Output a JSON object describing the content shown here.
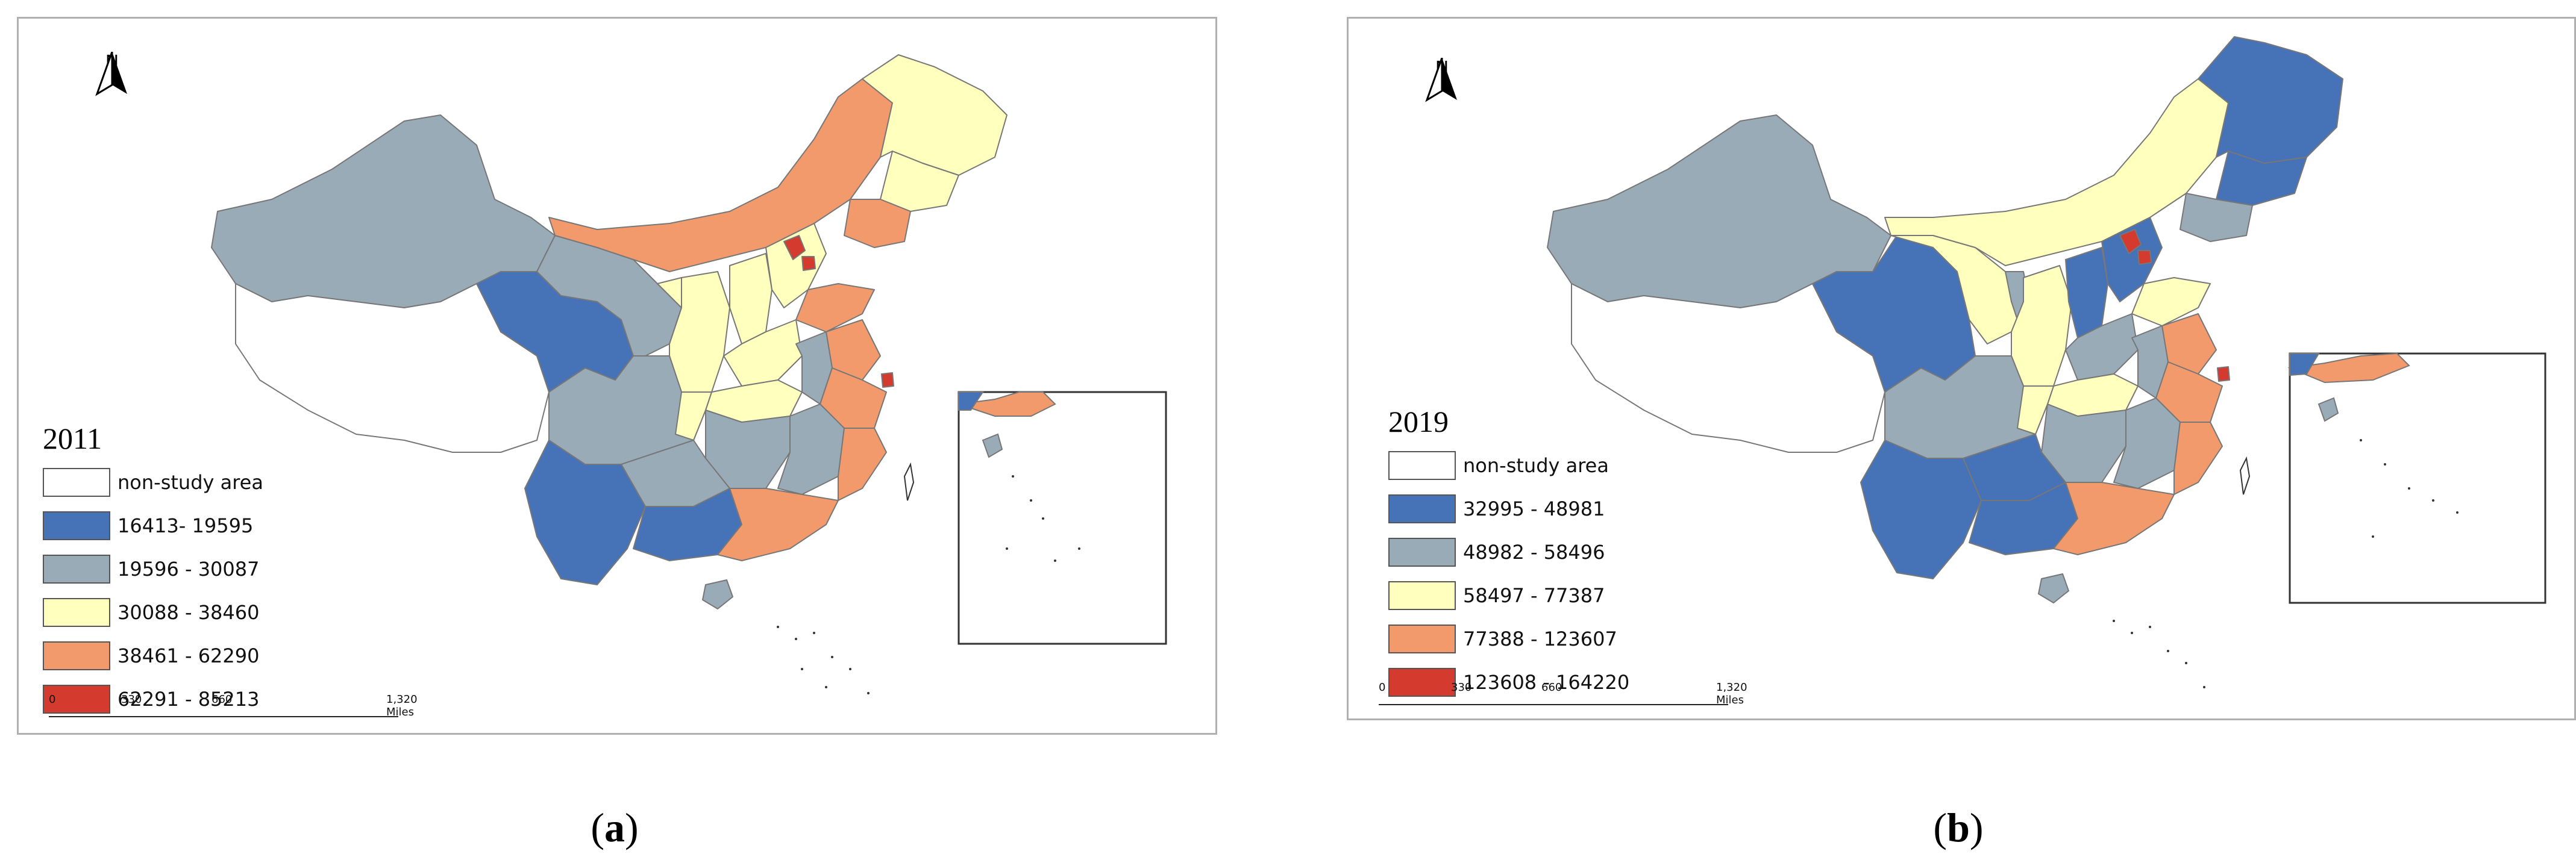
{
  "figure": {
    "caption_a": "a",
    "caption_b": "b"
  },
  "north_label": "N",
  "colors": {
    "class1": "#4673b8",
    "class2": "#9aabb8",
    "class3": "#ffffbe",
    "class4": "#f29a6b",
    "class5": "#d43a2e",
    "non_study": "#ffffff"
  },
  "panel_a": {
    "year": "2011",
    "legend": [
      {
        "label": "non-study area",
        "color": "#ffffff"
      },
      {
        "label": "16413- 19595",
        "color": "#4673b8"
      },
      {
        "label": "19596 - 30087",
        "color": "#9aabb8"
      },
      {
        "label": "30088 - 38460",
        "color": "#ffffbe"
      },
      {
        "label": "38461 - 62290",
        "color": "#f29a6b"
      },
      {
        "label": "62291 - 85213",
        "color": "#d43a2e"
      }
    ],
    "scale": {
      "t0": "0",
      "t1": "330",
      "t2": "660",
      "t3": "1,320 Miles"
    }
  },
  "panel_b": {
    "year": "2019",
    "legend": [
      {
        "label": "non-study area",
        "color": "#ffffff"
      },
      {
        "label": "32995 - 48981",
        "color": "#4673b8"
      },
      {
        "label": "48982 - 58496",
        "color": "#9aabb8"
      },
      {
        "label": "58497 - 77387",
        "color": "#ffffbe"
      },
      {
        "label": "77388 - 123607",
        "color": "#f29a6b"
      },
      {
        "label": "123608 - 164220",
        "color": "#d43a2e"
      }
    ],
    "scale": {
      "t0": "0",
      "t1": "330",
      "t2": "660",
      "t3": "1,320 Miles"
    }
  }
}
